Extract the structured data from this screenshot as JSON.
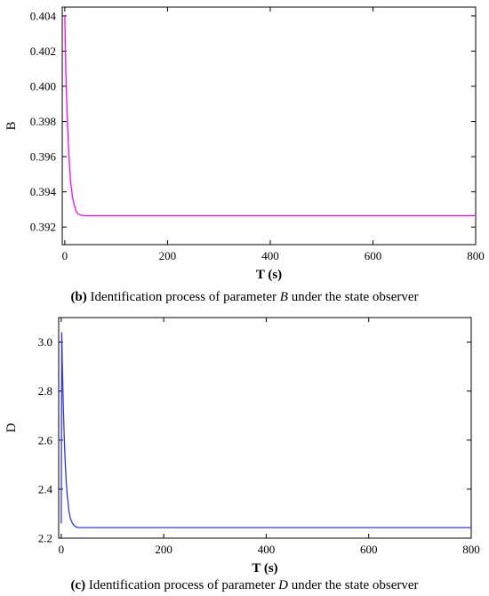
{
  "captions": {
    "b": {
      "label": "(b)",
      "pre": " Identification process of parameter ",
      "var": "B",
      "post": " under the state observer"
    },
    "c": {
      "label": "(c)",
      "pre": " Identification process of parameter ",
      "var": "D",
      "post": " under the state observer"
    }
  },
  "chart_data": [
    {
      "type": "line",
      "title": "",
      "xlabel": "T (s)",
      "ylabel": "B",
      "xlim": [
        -5,
        800
      ],
      "ylim": [
        0.391,
        0.4045
      ],
      "xticks": [
        0,
        200,
        400,
        600,
        800
      ],
      "xtick_labels": [
        "0",
        "200",
        "400",
        "600",
        "800"
      ],
      "yticks": [
        0.392,
        0.394,
        0.396,
        0.398,
        0.4,
        0.402,
        0.404
      ],
      "ytick_labels": [
        "0.392",
        "0.394",
        "0.396",
        "0.398",
        "0.400",
        "0.402",
        "0.404"
      ],
      "grid": false,
      "color": "#ff00ff",
      "series": [
        {
          "x": [
            0,
            2,
            4,
            6,
            8,
            10,
            12,
            15,
            18,
            22,
            26,
            30,
            35,
            40,
            50,
            100,
            200,
            400,
            600,
            800
          ],
          "y": [
            0.404,
            0.4008,
            0.3989,
            0.3973,
            0.3961,
            0.3951,
            0.3944,
            0.3937,
            0.3933,
            0.3929,
            0.39275,
            0.39268,
            0.39265,
            0.39265,
            0.39265,
            0.39265,
            0.39265,
            0.39265,
            0.39265,
            0.39265
          ]
        }
      ]
    },
    {
      "type": "line",
      "title": "",
      "xlabel": "T (s)",
      "ylabel": "D",
      "xlim": [
        -5,
        800
      ],
      "ylim": [
        2.2,
        3.1
      ],
      "xticks": [
        0,
        200,
        400,
        600,
        800
      ],
      "xtick_labels": [
        "0",
        "200",
        "400",
        "600",
        "800"
      ],
      "yticks": [
        2.2,
        2.4,
        2.6,
        2.8,
        3.0
      ],
      "ytick_labels": [
        "2.2",
        "2.4",
        "2.6",
        "2.8",
        "3.0"
      ],
      "grid": false,
      "color": "#3333ee",
      "series": [
        {
          "x": [
            0,
            1,
            2,
            4,
            6,
            8,
            10,
            12,
            15,
            18,
            22,
            26,
            30,
            35,
            40,
            50,
            100,
            200,
            400,
            600,
            800
          ],
          "y": [
            2.26,
            3.04,
            2.92,
            2.74,
            2.6,
            2.5,
            2.42,
            2.37,
            2.31,
            2.28,
            2.26,
            2.25,
            2.245,
            2.243,
            2.243,
            2.243,
            2.243,
            2.243,
            2.243,
            2.243,
            2.243
          ]
        }
      ]
    }
  ]
}
